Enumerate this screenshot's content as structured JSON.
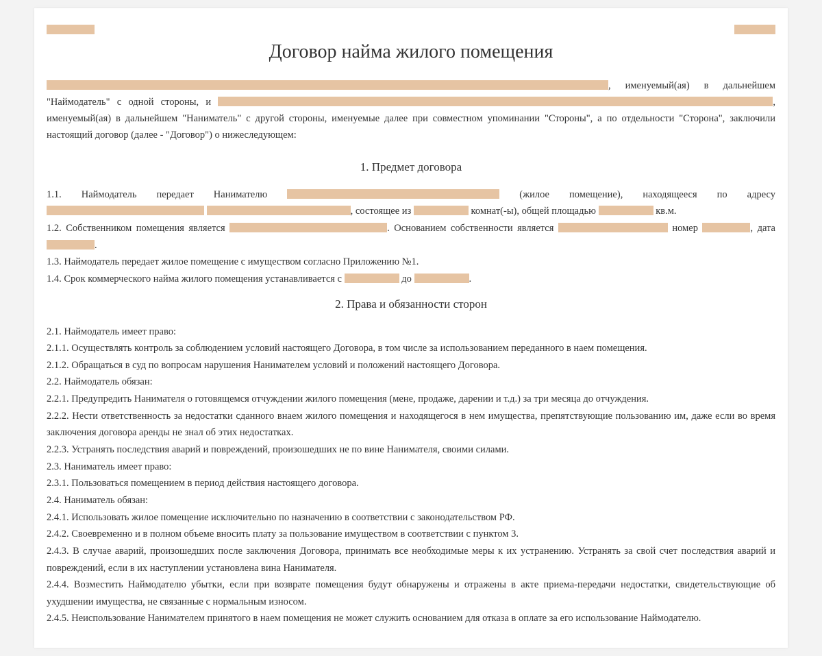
{
  "title": "Договор найма жилого помещения",
  "intro": {
    "t1": ", именуемый(ая) в дальнейшем \"Наймодатель\" с одной стороны, и ",
    "t2": ", именуемый(ая) в дальнейшем \"Наниматель\" с другой стороны, именуемые далее при совместном упоминании \"Стороны\", а по отдельности \"Сторона\", заключили настоящий договор (далее - \"Договор\") о нижеследующем:"
  },
  "s1": {
    "title": "1. Предмет договора",
    "p11a": "1.1. Наймодатель передает Нанимателю ",
    "p11b": " (жилое помещение), находящееся по адресу ",
    "p11c": ", состоящее из ",
    "p11d": " комнат(-ы), общей площадью ",
    "p11e": " кв.м.",
    "p12a": "1.2. Собственником помещения является ",
    "p12b": ". Основанием собственности является ",
    "p12c": " номер ",
    "p12d": ", дата ",
    "p12e": ".",
    "p13": "1.3. Наймодатель передает жилое помещение с имуществом согласно Приложению №1.",
    "p14a": "1.4. Срок коммерческого найма жилого помещения устанавливается с ",
    "p14b": " до ",
    "p14c": "."
  },
  "s2": {
    "title": "2. Права и обязанности сторон",
    "p21": "2.1. Наймодатель имеет право:",
    "p211": "2.1.1. Осуществлять контроль за соблюдением условий настоящего Договора, в том числе за использованием переданного в наем помещения.",
    "p212": "2.1.2. Обращаться в суд по вопросам нарушения Нанимателем условий и положений настоящего Договора.",
    "p22": "2.2. Наймодатель обязан:",
    "p221": "2.2.1. Предупредить Нанимателя о готовящемся отчуждении жилого помещения (мене, продаже, дарении и т.д.) за три месяца до отчуждения.",
    "p222": "2.2.2. Нести ответственность за недостатки сданного внаем жилого помещения и находящегося в нем имущества, препятствующие пользованию им, даже если во время заключения договора аренды не знал об этих недостатках.",
    "p223": "2.2.3. Устранять последствия аварий и повреждений, произошедших не по вине Нанимателя, своими силами.",
    "p23": "2.3. Наниматель имеет право:",
    "p231": "2.3.1. Пользоваться помещением в период действия настоящего договора.",
    "p24": "2.4. Наниматель обязан:",
    "p241": "2.4.1. Использовать жилое помещение исключительно по назначению в соответствии с законодательством РФ.",
    "p242": "2.4.2. Своевременно и в полном объеме вносить плату за пользование имуществом в соответствии с пунктом 3.",
    "p243": "2.4.3. В случае аварий, произошедших после заключения Договора, принимать все необходимые меры к их устранению. Устранять за свой счет последствия аварий и повреждений, если в их наступлении установлена вина Нанимателя.",
    "p244": "2.4.4. Возместить Наймодателю убытки, если при возврате помещения будут обнаружены и отражены в акте приема-передачи недостатки, свидетельствующие об ухудшении имущества, не связанные с нормальным износом.",
    "p245": "2.4.5. Неиспользование Нанимателем принятого в наем помещения не может служить основанием для отказа в оплате за его использование Наймодателю."
  },
  "blank_color": "#e6c4a3",
  "page_bg": "#ffffff",
  "body_bg": "#f3f3f3"
}
